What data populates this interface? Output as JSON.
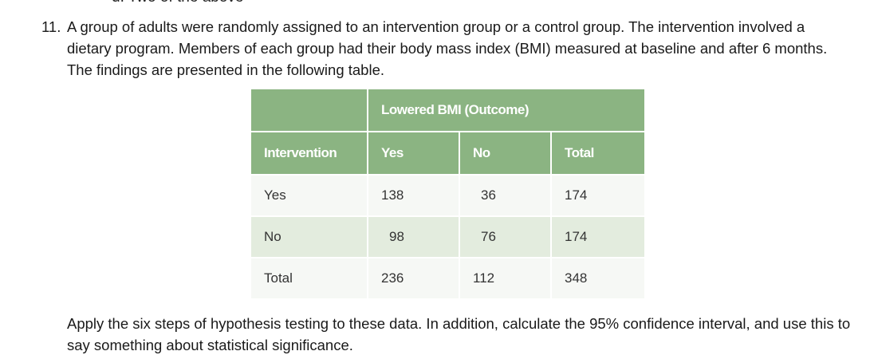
{
  "clipped_line": "d. Two of the above",
  "question": {
    "number": "11.",
    "text": "A group of adults were randomly assigned to an intervention group or a control group. The intervention involved a dietary program. Members of each group had their body mass index (BMI) measured at baseline and after 6 months. The findings are presented in the following table."
  },
  "table": {
    "group_header": "Lowered BMI (Outcome)",
    "row_header": "Intervention",
    "columns": [
      "Yes",
      "No",
      "Total"
    ],
    "rows": [
      {
        "label": "Yes",
        "values": [
          "138",
          "36",
          "174"
        ]
      },
      {
        "label": "No",
        "values": [
          "98",
          "76",
          "174"
        ]
      },
      {
        "label": "Total",
        "values": [
          "236",
          "112",
          "348"
        ]
      }
    ],
    "header_color": "#8bb482"
  },
  "instruction": "Apply the six steps of hypothesis testing to these data. In addition, calculate the 95% confidence interval, and use this to say something about statistical significance."
}
